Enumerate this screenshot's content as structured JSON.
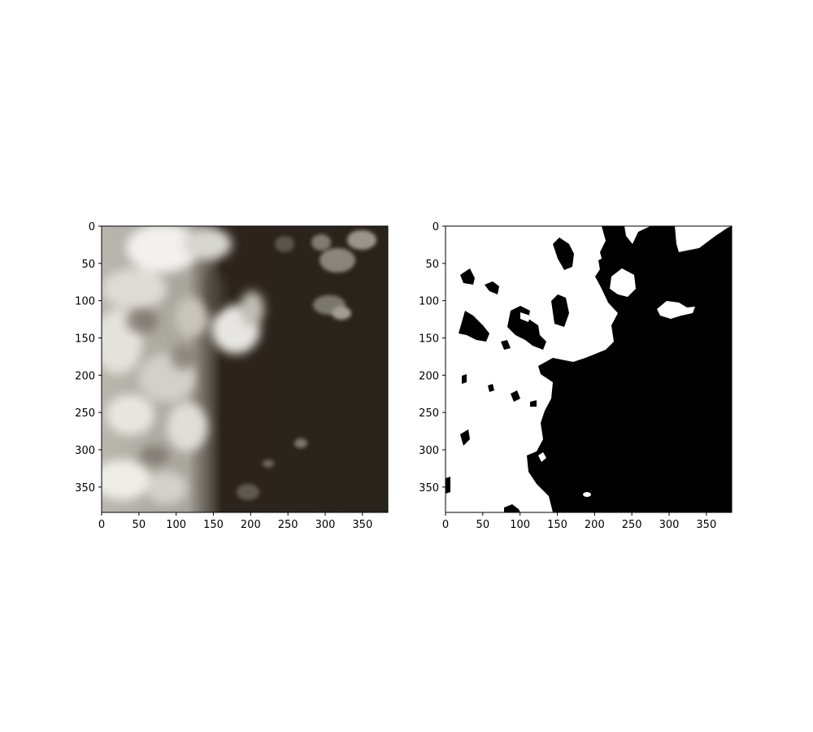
{
  "chart_data": [
    {
      "type": "heatmap",
      "title": "",
      "xlabel": "",
      "ylabel": "",
      "xlim": [
        0,
        384
      ],
      "ylim": [
        384,
        0
      ],
      "xticks": [
        0,
        50,
        100,
        150,
        200,
        250,
        300,
        350
      ],
      "yticks": [
        0,
        50,
        100,
        150,
        200,
        250,
        300,
        350
      ],
      "image_content": "RGB satellite image: bright white/grey clouds on the left half, dark brown ground on the right half",
      "colors": {
        "cloud": "#e8e6e0",
        "cloud_shadow": "#8e8c84",
        "ground": "#2c241c"
      }
    },
    {
      "type": "heatmap",
      "title": "",
      "xlabel": "",
      "ylabel": "",
      "xlim": [
        0,
        384
      ],
      "ylim": [
        384,
        0
      ],
      "xticks": [
        0,
        50,
        100,
        150,
        200,
        250,
        300,
        350
      ],
      "yticks": [
        0,
        50,
        100,
        150,
        200,
        250,
        300,
        350
      ],
      "image_content": "Binary cloud mask: white = cloud, black = clear",
      "colors": {
        "cloud": "#ffffff",
        "clear": "#000000"
      }
    }
  ]
}
